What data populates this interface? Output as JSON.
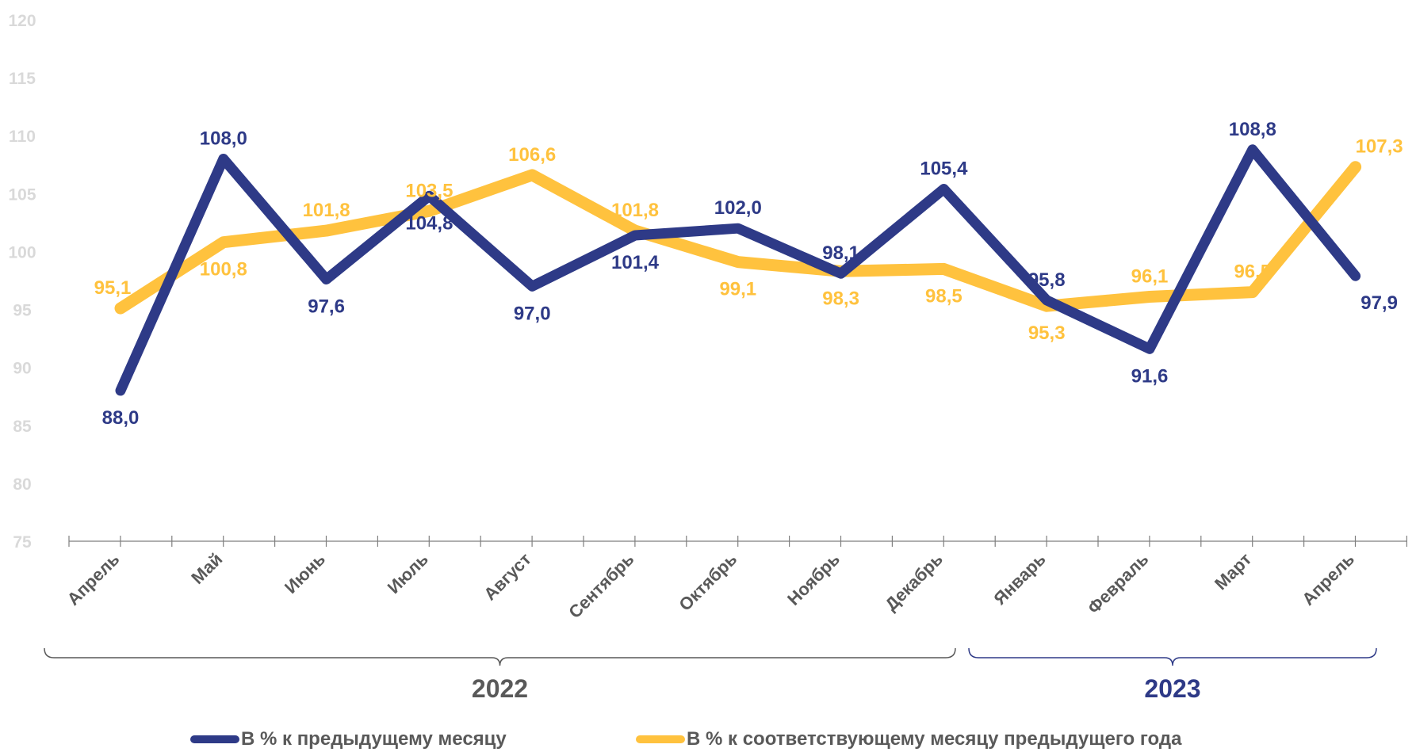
{
  "chart_data": {
    "type": "line",
    "categories": [
      "Апрель",
      "Май",
      "Июнь",
      "Июль",
      "Август",
      "Сентябрь",
      "Октябрь",
      "Ноябрь",
      "Декабрь",
      "Январь",
      "Февраль",
      "Март",
      "Апрель"
    ],
    "series": [
      {
        "name": "В % к предыдущему месяцу",
        "color": "#2E3A87",
        "values": [
          88.0,
          108.0,
          97.6,
          104.8,
          97.0,
          101.4,
          102.0,
          98.1,
          105.4,
          95.8,
          91.6,
          108.8,
          97.9
        ],
        "labels": [
          "88,0",
          "108,0",
          "97,6",
          "104,8",
          "97,0",
          "101,4",
          "102,0",
          "98,1",
          "105,4",
          "95,8",
          "91,6",
          "108,8",
          "97,9"
        ]
      },
      {
        "name": "В % к соответствующему месяцу предыдущего года",
        "color": "#FFC23E",
        "values": [
          95.1,
          100.8,
          101.8,
          103.5,
          106.6,
          101.8,
          99.1,
          98.3,
          98.5,
          95.3,
          96.1,
          96.5,
          107.3
        ],
        "labels": [
          "95,1",
          "100,8",
          "101,8",
          "103,5",
          "106,6",
          "101,8",
          "99,1",
          "98,3",
          "98,5",
          "95,3",
          "96,1",
          "96,5",
          "107,3"
        ]
      }
    ],
    "ylim": [
      75,
      120
    ],
    "yticks": [
      "75",
      "80",
      "85",
      "90",
      "95",
      "100",
      "105",
      "110",
      "115",
      "120"
    ],
    "year_groups": [
      {
        "label": "2022",
        "color": "#595959"
      },
      {
        "label": "2023",
        "color": "#2E3A87"
      }
    ],
    "grid": false,
    "legend_position": "bottom"
  }
}
